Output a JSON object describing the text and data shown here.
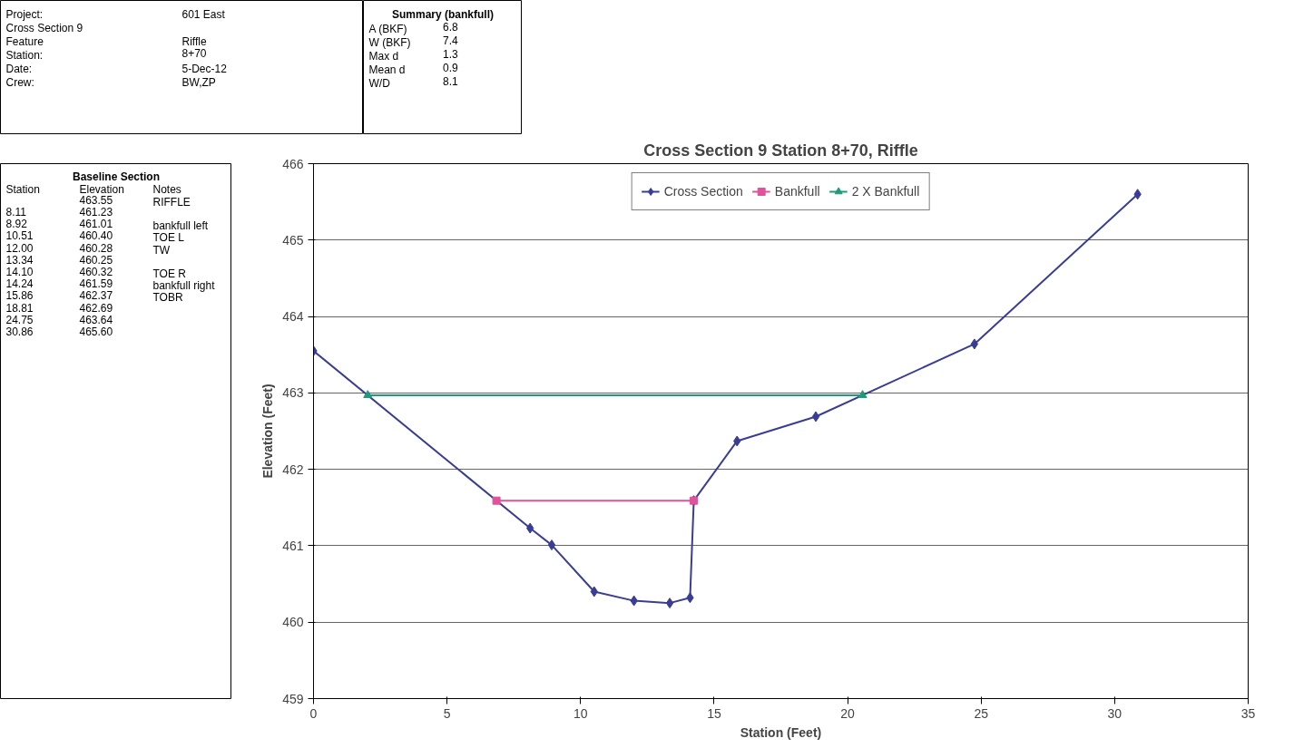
{
  "chart_data": [
    {
      "type": "other",
      "categories": [
        null,
        null
      ],
      "annotations": [
        "Project:",
        "601 East",
        "Cross Section 9",
        null,
        "Feature",
        "Riffle",
        "Station:",
        "8+70",
        "Date:",
        "5-Dec-12",
        "Crew:",
        "BW,ZP"
      ]
    },
    {
      "type": "other",
      "title": "Summary (bankfull)",
      "categories": [
        null,
        null
      ],
      "annotations": [
        "A (BKF)",
        "6.8",
        "W (BKF)",
        "7.4",
        "Max d",
        "1.3",
        "Mean d",
        "0.9",
        "W/D",
        "8.1"
      ]
    },
    {
      "type": "other",
      "title": "Baseline Section",
      "categories": [
        "Station",
        "Elevation",
        "Notes"
      ],
      "annotations": [
        null,
        "463.55",
        "RIFFLE",
        "8.11",
        "461.23",
        null,
        "8.92",
        "461.01",
        "bankfull left",
        "10.51",
        "460.40",
        "TOE L",
        "12.00",
        "460.28",
        "TW",
        "13.34",
        "460.25",
        null,
        "14.10",
        "460.32",
        "TOE R",
        "14.24",
        "461.59",
        "bankfull right",
        "15.86",
        "462.37",
        "TOBR",
        "18.81",
        "462.69",
        null,
        "24.75",
        "463.64",
        null,
        "30.86",
        "465.60",
        null
      ]
    },
    {
      "type": "line",
      "title": "Cross Section 9 Station 8+70, Riffle",
      "xlabel": "Station (Feet)",
      "ylabel": "Elevation (Feet)",
      "xlim": [
        0,
        35
      ],
      "ylim": [
        459,
        466
      ],
      "xticks": [
        0,
        5,
        10,
        15,
        20,
        25,
        30,
        35
      ],
      "yticks": [
        459,
        460,
        461,
        462,
        463,
        464,
        465,
        466
      ],
      "grid": "y",
      "legend": "top",
      "line_style": "solid",
      "series": [
        {
          "name": "Cross Section",
          "color": "#3a3d94",
          "marker": "diamond",
          "x": [
            0,
            8.11,
            8.92,
            10.51,
            12.0,
            13.34,
            14.1,
            14.24,
            15.86,
            18.81,
            24.75,
            30.86
          ],
          "values": [
            463.55,
            461.23,
            461.01,
            460.4,
            460.28,
            460.25,
            460.32,
            461.59,
            462.37,
            462.69,
            463.64,
            465.6
          ]
        },
        {
          "name": "Bankfull",
          "color": "#e0529a",
          "marker": "square",
          "x": [
            6.85,
            14.24
          ],
          "values": [
            461.59,
            461.59
          ]
        },
        {
          "name": "2 X Bankfull",
          "color": "#1f9a7c",
          "marker": "triangle",
          "x": [
            2.03,
            20.56
          ],
          "values": [
            462.97,
            462.97
          ]
        }
      ]
    }
  ]
}
